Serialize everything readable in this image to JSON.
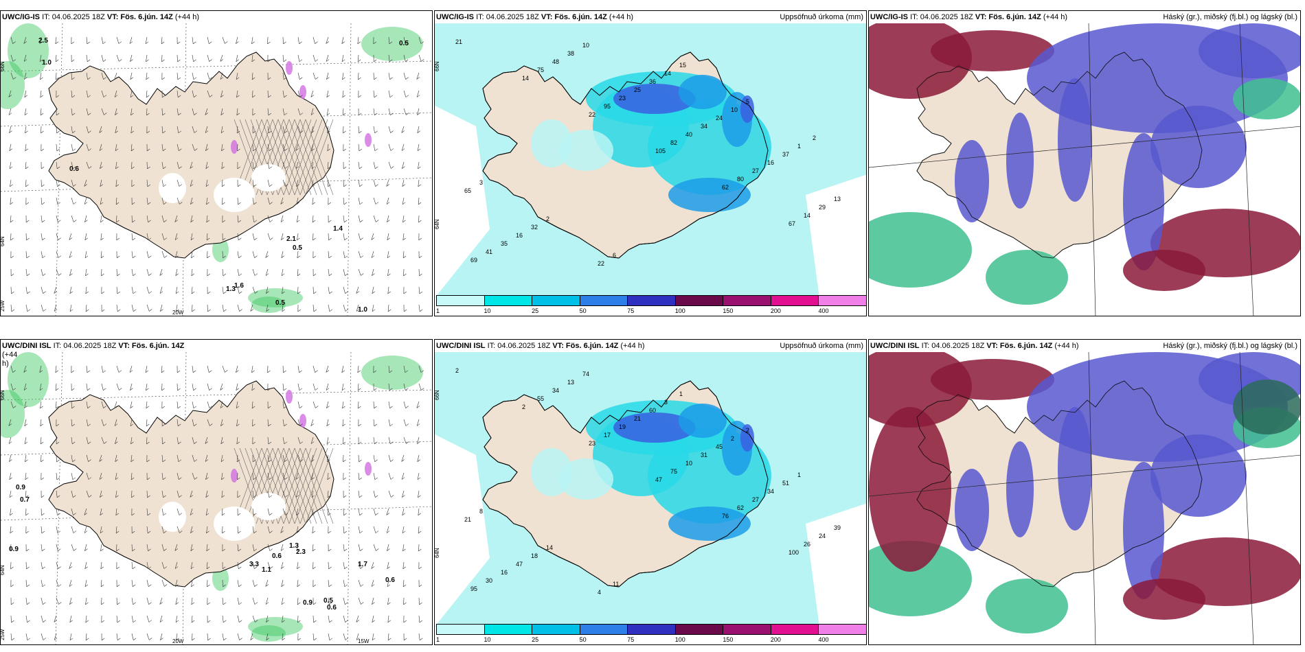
{
  "colors": {
    "land": "#f0e2d2",
    "precip_light": "#b8f4f4",
    "precip_mid": "#28d8e8",
    "precip_dark": "#1c9ce8",
    "precip_blue": "#3a5fe0",
    "cloud_high": "#8b1a3a",
    "cloud_mid": "#5858d0",
    "cloud_low": "#40c090",
    "wind_green": "#3cc860",
    "wind_purple": "#d070e0"
  },
  "colorbar": {
    "colors": [
      "#c8fafa",
      "#00e6e6",
      "#00c0e8",
      "#2e7ee8",
      "#3030c0",
      "#6a0a4a",
      "#9a1070",
      "#e01090",
      "#f080e8"
    ],
    "ticks": [
      "1",
      "10",
      "25",
      "50",
      "75",
      "100",
      "150",
      "200",
      "400"
    ]
  },
  "panels": [
    {
      "model": "UWC/IG-IS",
      "it": "IT: 04.06.2025 18Z",
      "vt": "VT: Fös. 6.jún. 14Z",
      "lead": "(+44 h)",
      "right": "",
      "kind": "wind",
      "axis": {
        "lon1": "20W",
        "lon2": "",
        "lat1": "66N",
        "lat2": "64N",
        "lat_left": "25W"
      },
      "values": [
        "0.5",
        "0.6",
        "0.5",
        "2.1",
        "1.4",
        "1.0",
        "1.6",
        "1.3",
        "0.5",
        "2.5",
        "1.0"
      ]
    },
    {
      "model": "UWC/IG-IS",
      "it": "IT: 04.06.2025 18Z",
      "vt": "VT: Fös. 6.jún. 14Z",
      "lead": "(+44 h)",
      "right": "Uppsöfnuð úrkoma (mm)",
      "kind": "precip",
      "axis": {
        "lat1": "66N",
        "lat2": "64N"
      },
      "values": [
        "21",
        "14",
        "22",
        "105",
        "62",
        "67",
        "69",
        "75",
        "95",
        "82",
        "80",
        "14",
        "41",
        "48",
        "23",
        "40",
        "27",
        "29",
        "35",
        "38",
        "25",
        "34",
        "16",
        "13",
        "16",
        "10",
        "36",
        "24",
        "37",
        "65",
        "32",
        "22",
        "14",
        "10",
        "1",
        "3",
        "2",
        "6",
        "15",
        "5",
        "2"
      ]
    },
    {
      "model": "UWC/IG-IS",
      "it": "IT: 04.06.2025 18Z",
      "vt": "VT: Fös. 6.jún. 14Z",
      "lead": "(+44 h)",
      "right": "Háský (gr.), miðský (fj.bl.) og lágský (bl.)",
      "kind": "cloud"
    },
    {
      "model": "UWC/DINI ISL",
      "it": "IT: 04.06.2025 18Z",
      "vt": "VT: Fös. 6.jún. 14Z",
      "lead": "(+44",
      "lead2": "h)",
      "right": "",
      "kind": "wind",
      "axis": {
        "lon1": "20W",
        "lon2": "15W",
        "lat1": "66N",
        "lat2": "64N",
        "lat_left": "25W"
      },
      "values": [
        "0.9",
        "0.7",
        "0.9",
        "3.3",
        "1.1",
        "2.3",
        "1.7",
        "0.6",
        "0.9",
        "0.5",
        "0.6",
        "0.6",
        "1.3"
      ]
    },
    {
      "model": "UWC/DINI ISL",
      "it": "IT: 04.06.2025 18Z",
      "vt": "VT: Fös. 6.jún. 14Z",
      "lead": "(+44 h)",
      "right": "Uppsöfnuð úrkoma (mm)",
      "kind": "precip",
      "axis": {
        "lat1": "66N",
        "lat2": "64N"
      },
      "values": [
        "2",
        "2",
        "23",
        "47",
        "76",
        "100",
        "95",
        "55",
        "17",
        "75",
        "62",
        "26",
        "30",
        "34",
        "19",
        "10",
        "27",
        "24",
        "16",
        "13",
        "21",
        "31",
        "34",
        "39",
        "47",
        "74",
        "60",
        "45",
        "51",
        "21",
        "18",
        "4",
        "3",
        "2",
        "1",
        "8",
        "14",
        "11",
        "1",
        "2"
      ]
    },
    {
      "model": "UWC/DINI ISL",
      "it": "IT: 04.06.2025 18Z",
      "vt": "VT: Fös. 6.jún. 14Z",
      "lead": "(+44 h)",
      "right": "Háský (gr.), miðský (fj.bl.) og lágský (bl.)",
      "kind": "cloud"
    }
  ]
}
